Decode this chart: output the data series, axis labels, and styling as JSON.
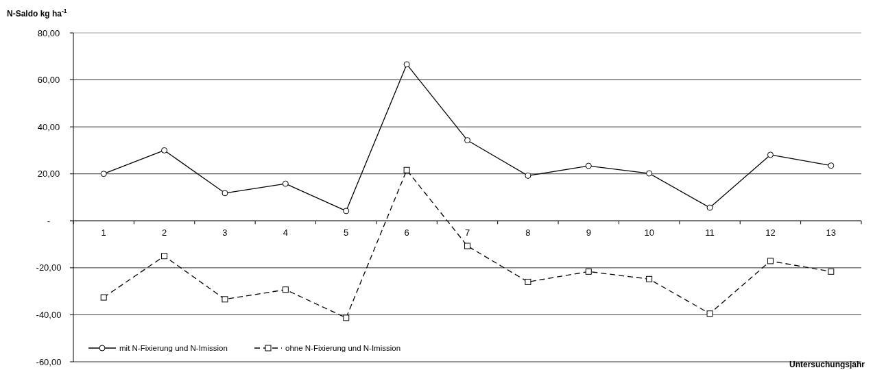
{
  "chart_data": {
    "type": "line",
    "ylabel": "N-Saldo kg ha$^{-1}$",
    "xlabel": "Untersuchungsjahr",
    "categories": [
      "1",
      "2",
      "3",
      "4",
      "5",
      "6",
      "7",
      "8",
      "9",
      "10",
      "11",
      "12",
      "13"
    ],
    "series": [
      {
        "name": "mit N-Fixierung und N-Imission",
        "color": "#000000",
        "marker": "circle",
        "line_style": "solid",
        "values": [
          20.0,
          30.0,
          11.8,
          15.8,
          4.2,
          66.6,
          34.3,
          19.2,
          23.4,
          20.2,
          5.6,
          28.1,
          23.5
        ]
      },
      {
        "name": "ohne N-Fixierung und N-Imission",
        "color": "#000000",
        "marker": "square",
        "line_style": "dashed",
        "values": [
          -32.6,
          -15.0,
          -33.4,
          -29.3,
          -41.3,
          21.6,
          -10.7,
          -26.0,
          -21.6,
          -24.8,
          -39.5,
          -17.1,
          -21.6
        ]
      }
    ],
    "ylim": [
      -60,
      80
    ],
    "yticks": [
      {
        "value": -60,
        "label": "-60,00"
      },
      {
        "value": -40,
        "label": "-40,00"
      },
      {
        "value": -20,
        "label": "-20,00"
      },
      {
        "value": 0,
        "label": "-"
      },
      {
        "value": 20,
        "label": "20,00"
      },
      {
        "value": 40,
        "label": "40,00"
      },
      {
        "value": 60,
        "label": "60,00"
      },
      {
        "value": 80,
        "label": "80,00"
      }
    ],
    "grid": "y",
    "legend": "bottom left"
  }
}
